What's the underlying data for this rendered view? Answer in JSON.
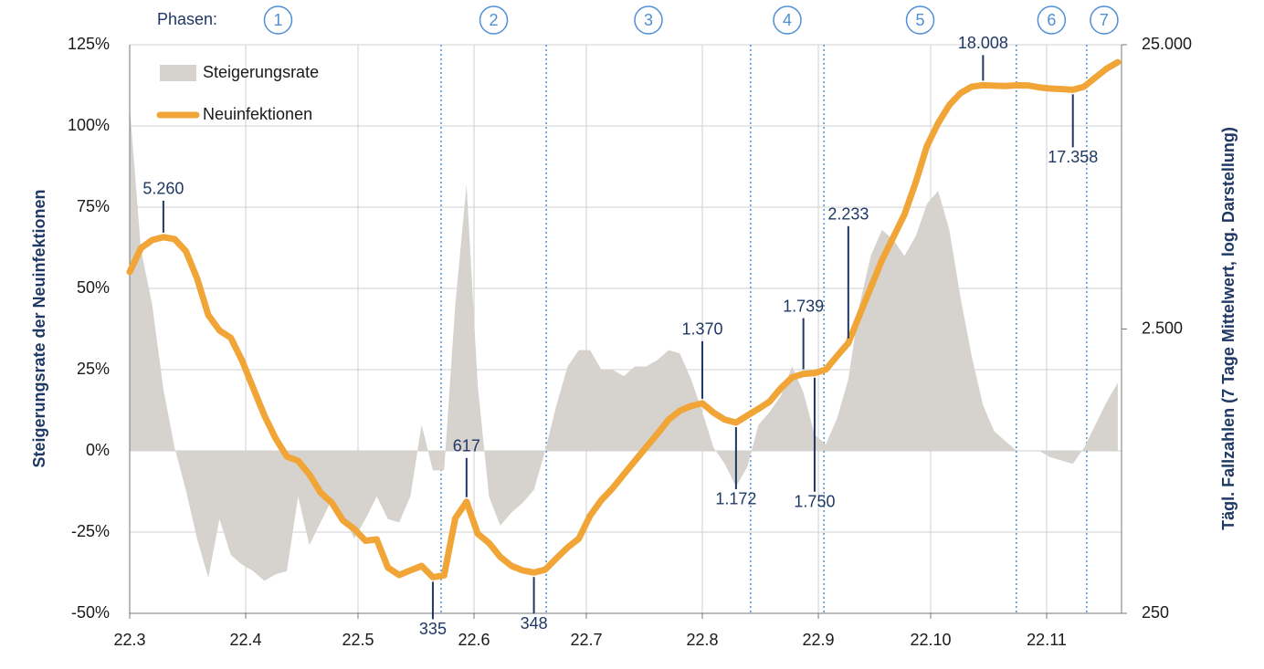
{
  "chart_data": {
    "type": "area-line",
    "phases": {
      "label": "Phasen:",
      "names": [
        "1",
        "2",
        "3",
        "4",
        "5",
        "6",
        "7"
      ],
      "boundaries": [
        83.2,
        111.3,
        165.9,
        185.5,
        236.9,
        255.7
      ],
      "color": "#4f8fd6"
    },
    "ylabel": "Steigerungsrate der Neuinfektionen",
    "y2label": "Tägl. Fallzahlen (7 Tage Mittelwert, log. Darstellung)",
    "x": [
      0,
      3,
      6,
      9,
      12,
      15,
      18,
      21,
      24,
      27,
      30,
      33,
      36,
      39,
      42,
      45,
      48,
      51,
      54,
      57,
      60,
      63,
      66,
      69,
      72,
      75,
      78,
      81,
      84,
      87,
      90,
      93,
      96,
      99,
      102,
      105,
      108,
      111,
      114,
      117,
      120,
      123,
      126,
      129,
      132,
      135,
      138,
      141,
      144,
      147,
      150,
      153,
      156,
      159,
      162,
      165,
      168,
      171,
      174,
      177,
      180,
      183,
      186,
      189,
      192,
      195,
      198,
      201,
      204,
      207,
      210,
      213,
      216,
      219,
      222,
      225,
      228,
      231,
      234,
      237,
      240,
      243,
      246,
      249,
      252,
      255,
      258,
      261,
      264
    ],
    "xlim": [
      0,
      265
    ],
    "xticks": [
      {
        "value": 0,
        "label": "22.3"
      },
      {
        "value": 31,
        "label": "22.4"
      },
      {
        "value": 61,
        "label": "22.5"
      },
      {
        "value": 92,
        "label": "22.6"
      },
      {
        "value": 122,
        "label": "22.7"
      },
      {
        "value": 153,
        "label": "22.8"
      },
      {
        "value": 184,
        "label": "22.9"
      },
      {
        "value": 214,
        "label": "22.10"
      },
      {
        "value": 245,
        "label": "22.11"
      }
    ],
    "ylim": [
      -50,
      125
    ],
    "yticks": [
      {
        "value": -50,
        "label": "-50%"
      },
      {
        "value": -25,
        "label": "-25%"
      },
      {
        "value": 0,
        "label": "0%"
      },
      {
        "value": 25,
        "label": "25%"
      },
      {
        "value": 50,
        "label": "50%"
      },
      {
        "value": 75,
        "label": "75%"
      },
      {
        "value": 100,
        "label": "100%"
      },
      {
        "value": 125,
        "label": "125%"
      }
    ],
    "y2lim": [
      250,
      25000
    ],
    "y2scale": "log",
    "y2ticks": [
      250,
      {
        "value": 2500,
        "label": "2.500"
      },
      {
        "value": 25000,
        "label": "25.000"
      }
    ],
    "grid": true,
    "legend": "top-left",
    "series": [
      {
        "name": "Steigerungsrate",
        "kind": "area",
        "color": "#d6d2cd",
        "values": [
          106,
          62,
          45,
          19,
          1,
          -12,
          -27,
          -39,
          -21,
          -32,
          -35,
          -37,
          -40,
          -38,
          -37,
          -14,
          -29,
          -22,
          -15,
          -20,
          -27,
          -21,
          -14,
          -21,
          -22,
          -14,
          8,
          -6,
          -6,
          45,
          82,
          20,
          -14,
          -23,
          -19,
          -16,
          -12,
          0,
          14,
          26,
          31,
          31,
          25,
          25,
          23,
          26,
          26,
          28,
          31,
          30,
          22,
          12,
          1,
          -4,
          -11,
          -5,
          8,
          12,
          17,
          26,
          18,
          5,
          2,
          10,
          22,
          45,
          60,
          68,
          65,
          60,
          66,
          76,
          80,
          68,
          47,
          29,
          14,
          6,
          3,
          0,
          0,
          0,
          -2,
          -3,
          -4,
          1,
          8,
          15,
          21
        ]
      },
      {
        "name": "Neuinfektionen",
        "kind": "line",
        "axis": "y2",
        "color": "#f0a536",
        "values": [
          3970,
          4810,
          5140,
          5260,
          5180,
          4700,
          3770,
          2800,
          2470,
          2330,
          1940,
          1550,
          1240,
          1030,
          890,
          860,
          770,
          665,
          612,
          530,
          495,
          450,
          455,
          362,
          341,
          354,
          367,
          335,
          340,
          540,
          617,
          476,
          442,
          395,
          367,
          354,
          348,
          356,
          390,
          426,
          458,
          551,
          625,
          688,
          770,
          860,
          960,
          1070,
          1200,
          1290,
          1340,
          1370,
          1270,
          1200,
          1172,
          1240,
          1310,
          1390,
          1550,
          1690,
          1739,
          1750,
          1800,
          2010,
          2233,
          2800,
          3500,
          4370,
          5250,
          6320,
          8190,
          11000,
          13240,
          15350,
          16900,
          17800,
          18008,
          17950,
          17900,
          18000,
          17980,
          17700,
          17530,
          17450,
          17358,
          17800,
          19150,
          20600,
          21700
        ]
      }
    ],
    "annotations": [
      {
        "value": 5260,
        "label": "5.260",
        "position": "above"
      },
      {
        "value": 335,
        "label": "335",
        "position": "below"
      },
      {
        "value": 617,
        "label": "617",
        "position": "above"
      },
      {
        "value": 348,
        "label": "348",
        "position": "below"
      },
      {
        "value": 1370,
        "label": "1.370",
        "position": "above"
      },
      {
        "value": 1172,
        "label": "1.172",
        "position": "below"
      },
      {
        "value": 1739,
        "label": "1.739",
        "position": "above"
      },
      {
        "value": 1750,
        "label": "1.750",
        "position": "below"
      },
      {
        "value": 2233,
        "label": "2.233",
        "position": "above"
      },
      {
        "value": 18008,
        "label": "18.008",
        "position": "above"
      },
      {
        "value": 17358,
        "label": "17.358",
        "position": "below"
      }
    ]
  }
}
